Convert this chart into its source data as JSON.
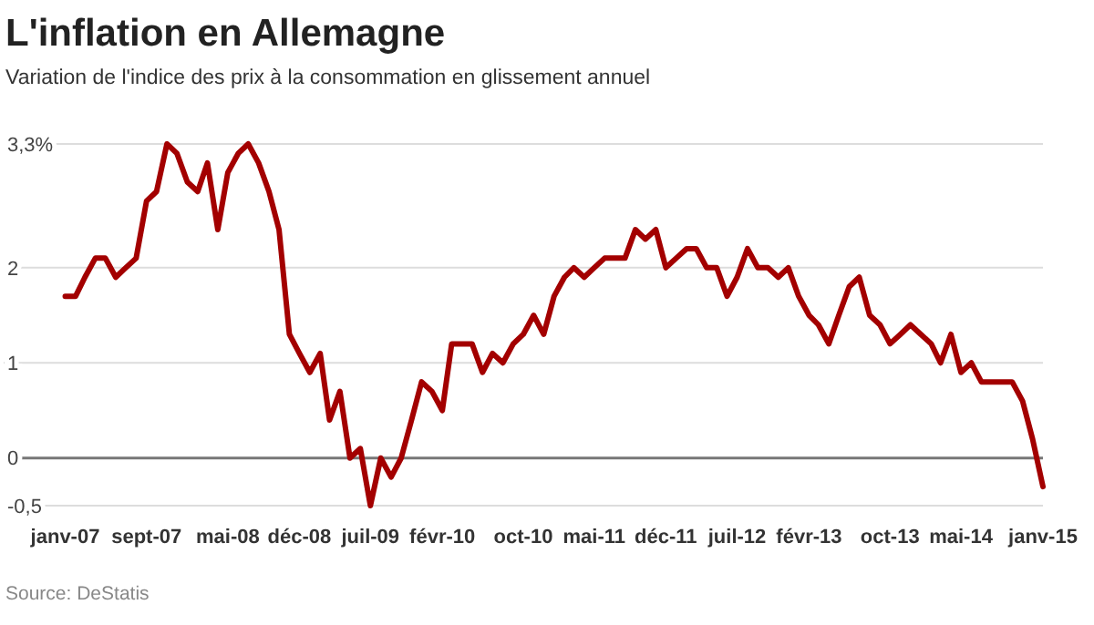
{
  "chart_data": {
    "type": "line",
    "title": "L'inflation en Allemagne",
    "subtitle": "Variation de l'indice des prix à la consommation en glissement annuel",
    "annotations": [
      "Source: DeStatis"
    ],
    "x": [
      "2007-01",
      "2007-02",
      "2007-03",
      "2007-04",
      "2007-05",
      "2007-06",
      "2007-07",
      "2007-08",
      "2007-09",
      "2007-10",
      "2007-11",
      "2007-12",
      "2008-01",
      "2008-02",
      "2008-03",
      "2008-04",
      "2008-05",
      "2008-06",
      "2008-07",
      "2008-08",
      "2008-09",
      "2008-10",
      "2008-11",
      "2008-12",
      "2009-01",
      "2009-02",
      "2009-03",
      "2009-04",
      "2009-05",
      "2009-06",
      "2009-07",
      "2009-08",
      "2009-09",
      "2009-10",
      "2009-11",
      "2009-12",
      "2010-01",
      "2010-02",
      "2010-03",
      "2010-04",
      "2010-05",
      "2010-06",
      "2010-07",
      "2010-08",
      "2010-09",
      "2010-10",
      "2010-11",
      "2010-12",
      "2011-01",
      "2011-02",
      "2011-03",
      "2011-04",
      "2011-05",
      "2011-06",
      "2011-07",
      "2011-08",
      "2011-09",
      "2011-10",
      "2011-11",
      "2011-12",
      "2012-01",
      "2012-02",
      "2012-03",
      "2012-04",
      "2012-05",
      "2012-06",
      "2012-07",
      "2012-08",
      "2012-09",
      "2012-10",
      "2012-11",
      "2012-12",
      "2013-01",
      "2013-02",
      "2013-03",
      "2013-04",
      "2013-05",
      "2013-06",
      "2013-07",
      "2013-08",
      "2013-09",
      "2013-10",
      "2013-11",
      "2013-12",
      "2014-01",
      "2014-02",
      "2014-03",
      "2014-04",
      "2014-05",
      "2014-06",
      "2014-07",
      "2014-08",
      "2014-09",
      "2014-10",
      "2014-11",
      "2014-12",
      "2015-01"
    ],
    "series": [
      {
        "color": "#a30000",
        "values": [
          1.7,
          1.7,
          1.9,
          2.1,
          2.1,
          1.9,
          2.0,
          2.1,
          2.7,
          2.8,
          3.3,
          3.2,
          2.9,
          2.8,
          3.1,
          2.4,
          3.0,
          3.2,
          3.3,
          3.1,
          2.8,
          2.4,
          1.3,
          1.1,
          0.9,
          1.1,
          0.4,
          0.7,
          0.0,
          0.1,
          -0.5,
          0.0,
          -0.2,
          0.0,
          0.4,
          0.8,
          0.7,
          0.5,
          1.2,
          1.2,
          1.2,
          0.9,
          1.1,
          1.0,
          1.2,
          1.3,
          1.5,
          1.3,
          1.7,
          1.9,
          2.0,
          1.9,
          2.0,
          2.1,
          2.1,
          2.1,
          2.4,
          2.3,
          2.4,
          2.0,
          2.1,
          2.2,
          2.2,
          2.0,
          2.0,
          1.7,
          1.9,
          2.2,
          2.0,
          2.0,
          1.9,
          2.0,
          1.7,
          1.5,
          1.4,
          1.2,
          1.5,
          1.8,
          1.9,
          1.5,
          1.4,
          1.2,
          1.3,
          1.4,
          1.3,
          1.2,
          1.0,
          1.3,
          0.9,
          1.0,
          0.8,
          0.8,
          0.8,
          0.8,
          0.6,
          0.2,
          -0.3
        ]
      }
    ],
    "xlim": [
      "2006-07",
      "2015-01"
    ],
    "xticks": [
      {
        "value": "2007-01",
        "label": "janv-07"
      },
      {
        "value": "2007-09",
        "label": "sept-07"
      },
      {
        "value": "2008-05",
        "label": "mai-08"
      },
      {
        "value": "2008-12",
        "label": "déc-08"
      },
      {
        "value": "2009-07",
        "label": "juil-09"
      },
      {
        "value": "2010-02",
        "label": "févr-10"
      },
      {
        "value": "2010-10",
        "label": "oct-10"
      },
      {
        "value": "2011-05",
        "label": "mai-11"
      },
      {
        "value": "2011-12",
        "label": "déc-11"
      },
      {
        "value": "2012-07",
        "label": "juil-12"
      },
      {
        "value": "2013-02",
        "label": "févr-13"
      },
      {
        "value": "2013-10",
        "label": "oct-13"
      },
      {
        "value": "2014-05",
        "label": "mai-14"
      },
      {
        "value": "2015-01",
        "label": "janv-15"
      }
    ],
    "ylim": [
      -0.5,
      3.3
    ],
    "yticks": [
      {
        "value": 3.3,
        "label": "3,3%"
      },
      2,
      1,
      0,
      {
        "value": -0.5,
        "label": "-0,5"
      }
    ],
    "grid": "y",
    "marker": "none",
    "line_style": "solid"
  }
}
